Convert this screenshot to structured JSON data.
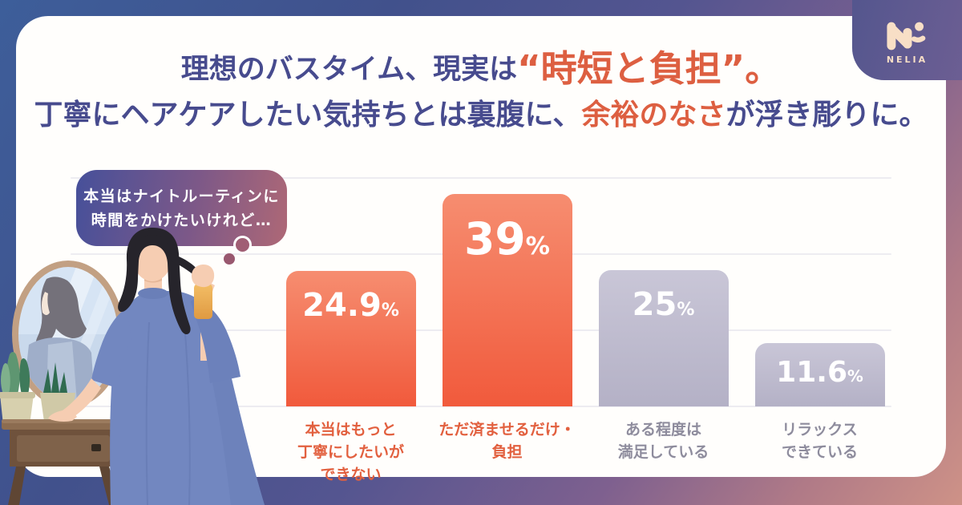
{
  "brand": {
    "name": "NELIA"
  },
  "header": {
    "line1": {
      "prefix": "理想のバスタイム、現実は",
      "highlight": "“時短と負担”。"
    },
    "line2": {
      "prefix": "丁寧にヘアケアしたい気持ちとは裏腹に、",
      "highlight": "余裕のなさ",
      "suffix": "が浮き彫りに。"
    }
  },
  "speech_bubble": {
    "lines": [
      "本当はナイトルーティンに",
      "時間をかけたいけれど…"
    ]
  },
  "chart_data": {
    "type": "bar",
    "categories": [
      "本当はもっと丁寧にしたいができない",
      "ただ済ませるだけ・負担",
      "ある程度は満足している",
      "リラックスできている"
    ],
    "values": [
      24.9,
      39,
      25,
      11.6
    ],
    "unit": "%",
    "bars": [
      {
        "value": 24.9,
        "display": "24.9",
        "style": "highlight",
        "label_lines": [
          "本当はもっと",
          "丁寧にしたいが",
          "できない"
        ]
      },
      {
        "value": 39,
        "display": "39",
        "style": "highlight",
        "label_lines": [
          "ただ済ませるだけ・",
          "負担"
        ]
      },
      {
        "value": 25,
        "display": "25",
        "style": "muted",
        "label_lines": [
          "ある程度は",
          "満足している"
        ]
      },
      {
        "value": 11.6,
        "display": "11.6",
        "style": "muted",
        "label_lines": [
          "リラックス",
          "できている"
        ]
      }
    ],
    "ylim": [
      0,
      42
    ],
    "grid": true,
    "legend": "none",
    "title": "理想のバスタイム、現実は“時短と負担”。丁寧にヘアケアしたい気持ちとは裏腹に、余裕のなさが浮き彫りに。"
  },
  "colors": {
    "title_text": "#474B8E",
    "title_highlight": "#DD5F41",
    "bar_highlight_top": "#F68D70",
    "bar_highlight_bottom": "#F15A3C",
    "bar_muted_top": "#C9C6D7",
    "bar_muted_bottom": "#B4B1C6",
    "label_highlight": "#E2603F",
    "label_muted": "#8E8C9D",
    "card_bg": "#FFFEFC",
    "logo_cream": "#F8DFC6"
  }
}
